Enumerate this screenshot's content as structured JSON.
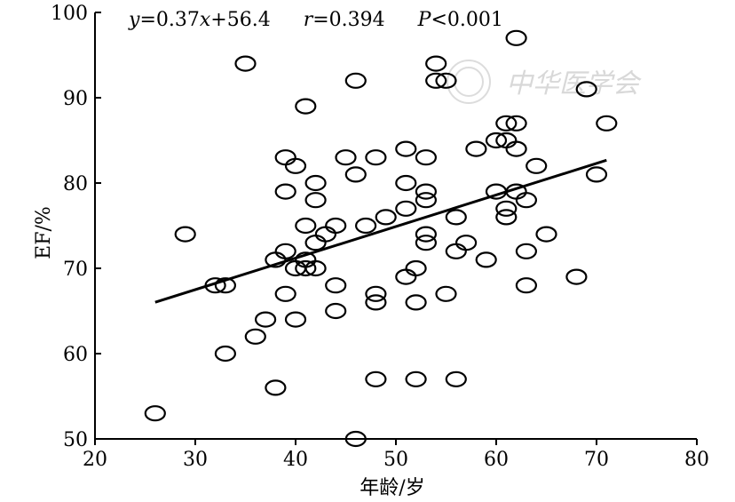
{
  "chart_data": {
    "type": "scatter",
    "xlabel": "年龄/岁",
    "ylabel": "EF/%",
    "xlim": [
      20,
      80
    ],
    "ylim": [
      50,
      100
    ],
    "x_ticks": [
      20,
      30,
      40,
      50,
      60,
      70,
      80
    ],
    "y_ticks": [
      50,
      60,
      70,
      80,
      90,
      100
    ],
    "grid": false,
    "annotation": {
      "y_var": "y",
      "equation_rest": "=0.37",
      "x_var": "x",
      "intercept": "+56.4",
      "r_var": "r",
      "r_value": "=0.394",
      "p_var": "P",
      "p_value": "<0.001"
    },
    "regression": {
      "slope": 0.37,
      "intercept": 56.4,
      "x_range": [
        26,
        71
      ]
    },
    "watermark": "中华医学会",
    "points": [
      {
        "x": 26,
        "y": 53
      },
      {
        "x": 29,
        "y": 74
      },
      {
        "x": 32,
        "y": 68
      },
      {
        "x": 33,
        "y": 68
      },
      {
        "x": 33,
        "y": 60
      },
      {
        "x": 35,
        "y": 94
      },
      {
        "x": 36,
        "y": 62
      },
      {
        "x": 37,
        "y": 64
      },
      {
        "x": 38,
        "y": 71
      },
      {
        "x": 38,
        "y": 56
      },
      {
        "x": 39,
        "y": 83
      },
      {
        "x": 39,
        "y": 79
      },
      {
        "x": 39,
        "y": 72
      },
      {
        "x": 39,
        "y": 67
      },
      {
        "x": 40,
        "y": 82
      },
      {
        "x": 40,
        "y": 70
      },
      {
        "x": 40,
        "y": 64
      },
      {
        "x": 41,
        "y": 89
      },
      {
        "x": 41,
        "y": 75
      },
      {
        "x": 41,
        "y": 71
      },
      {
        "x": 41,
        "y": 70
      },
      {
        "x": 42,
        "y": 80
      },
      {
        "x": 42,
        "y": 78
      },
      {
        "x": 42,
        "y": 73
      },
      {
        "x": 42,
        "y": 70
      },
      {
        "x": 43,
        "y": 74
      },
      {
        "x": 44,
        "y": 75
      },
      {
        "x": 44,
        "y": 68
      },
      {
        "x": 44,
        "y": 65
      },
      {
        "x": 45,
        "y": 83
      },
      {
        "x": 46,
        "y": 92
      },
      {
        "x": 46,
        "y": 81
      },
      {
        "x": 46,
        "y": 50
      },
      {
        "x": 47,
        "y": 75
      },
      {
        "x": 48,
        "y": 83
      },
      {
        "x": 48,
        "y": 67
      },
      {
        "x": 48,
        "y": 66
      },
      {
        "x": 48,
        "y": 57
      },
      {
        "x": 49,
        "y": 76
      },
      {
        "x": 51,
        "y": 84
      },
      {
        "x": 51,
        "y": 80
      },
      {
        "x": 51,
        "y": 77
      },
      {
        "x": 51,
        "y": 69
      },
      {
        "x": 52,
        "y": 70
      },
      {
        "x": 52,
        "y": 66
      },
      {
        "x": 52,
        "y": 57
      },
      {
        "x": 53,
        "y": 83
      },
      {
        "x": 53,
        "y": 79
      },
      {
        "x": 53,
        "y": 78
      },
      {
        "x": 53,
        "y": 74
      },
      {
        "x": 53,
        "y": 73
      },
      {
        "x": 54,
        "y": 94
      },
      {
        "x": 54,
        "y": 92
      },
      {
        "x": 55,
        "y": 92
      },
      {
        "x": 55,
        "y": 67
      },
      {
        "x": 56,
        "y": 76
      },
      {
        "x": 56,
        "y": 72
      },
      {
        "x": 56,
        "y": 57
      },
      {
        "x": 57,
        "y": 73
      },
      {
        "x": 58,
        "y": 84
      },
      {
        "x": 59,
        "y": 71
      },
      {
        "x": 60,
        "y": 85
      },
      {
        "x": 60,
        "y": 79
      },
      {
        "x": 61,
        "y": 87
      },
      {
        "x": 61,
        "y": 85
      },
      {
        "x": 61,
        "y": 77
      },
      {
        "x": 61,
        "y": 76
      },
      {
        "x": 62,
        "y": 97
      },
      {
        "x": 62,
        "y": 87
      },
      {
        "x": 62,
        "y": 84
      },
      {
        "x": 62,
        "y": 79
      },
      {
        "x": 63,
        "y": 78
      },
      {
        "x": 63,
        "y": 72
      },
      {
        "x": 63,
        "y": 68
      },
      {
        "x": 64,
        "y": 82
      },
      {
        "x": 65,
        "y": 74
      },
      {
        "x": 68,
        "y": 69
      },
      {
        "x": 69,
        "y": 91
      },
      {
        "x": 70,
        "y": 81
      },
      {
        "x": 71,
        "y": 87
      }
    ]
  }
}
